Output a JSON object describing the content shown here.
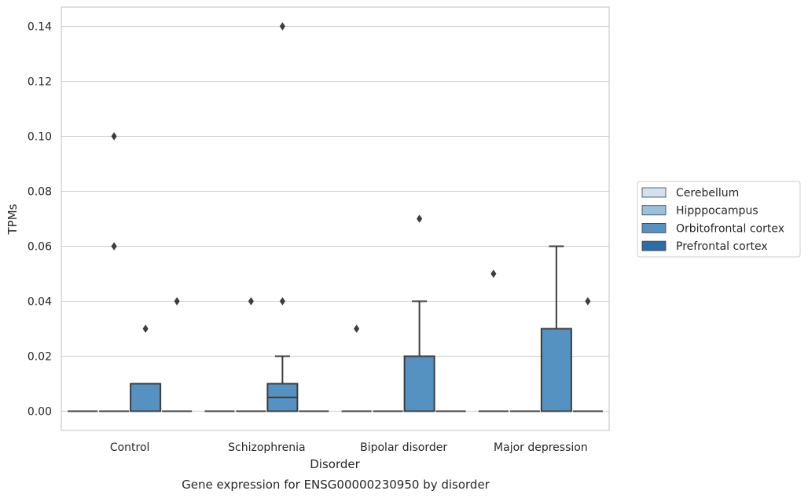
{
  "chart_data": {
    "type": "box",
    "caption": "Gene expression for ENSG00000230950 by disorder",
    "xlabel": "Disorder",
    "ylabel": "TPMs",
    "ylim": [
      -0.007,
      0.147
    ],
    "yticks": [
      0.0,
      0.02,
      0.04,
      0.06,
      0.08,
      0.1,
      0.12,
      0.14
    ],
    "ytick_labels": [
      "0.00",
      "0.02",
      "0.04",
      "0.06",
      "0.08",
      "0.10",
      "0.12",
      "0.14"
    ],
    "categories": [
      "Control",
      "Schizophrenia",
      "Bipolar disorder",
      "Major depression"
    ],
    "grid": "horizontal",
    "legend_position": "right",
    "series": [
      {
        "name": "Cerebellum",
        "color": "#d0e1f2",
        "boxes": [
          {
            "q1": 0.0,
            "median": 0.0,
            "q3": 0.0,
            "whisker_low": 0.0,
            "whisker_high": 0.0,
            "outliers": []
          },
          {
            "q1": 0.0,
            "median": 0.0,
            "q3": 0.0,
            "whisker_low": 0.0,
            "whisker_high": 0.0,
            "outliers": []
          },
          {
            "q1": 0.0,
            "median": 0.0,
            "q3": 0.0,
            "whisker_low": 0.0,
            "whisker_high": 0.0,
            "outliers": []
          },
          {
            "q1": 0.0,
            "median": 0.0,
            "q3": 0.0,
            "whisker_low": 0.0,
            "whisker_high": 0.0,
            "outliers": []
          }
        ]
      },
      {
        "name": "Hipppocampus",
        "color": "#9ac0dd",
        "boxes": [
          {
            "q1": 0.0,
            "median": 0.0,
            "q3": 0.0,
            "whisker_low": 0.0,
            "whisker_high": 0.0,
            "outliers": [
              0.1,
              0.06
            ]
          },
          {
            "q1": 0.0,
            "median": 0.0,
            "q3": 0.0,
            "whisker_low": 0.0,
            "whisker_high": 0.0,
            "outliers": []
          },
          {
            "q1": 0.0,
            "median": 0.0,
            "q3": 0.0,
            "whisker_low": 0.0,
            "whisker_high": 0.0,
            "outliers": []
          },
          {
            "q1": 0.0,
            "median": 0.0,
            "q3": 0.0,
            "whisker_low": 0.0,
            "whisker_high": 0.0,
            "outliers": []
          }
        ]
      },
      {
        "name": "Orbitofrontal cortex",
        "color": "#5692c1",
        "boxes": [
          {
            "q1": 0.0,
            "median": 0.0,
            "q3": 0.01,
            "whisker_low": 0.0,
            "whisker_high": 0.01,
            "outliers": [
              0.03
            ]
          },
          {
            "q1": 0.0,
            "median": 0.005,
            "q3": 0.01,
            "whisker_low": 0.0,
            "whisker_high": 0.02,
            "outliers": [
              0.14,
              0.04
            ]
          },
          {
            "q1": 0.0,
            "median": 0.0,
            "q3": 0.02,
            "whisker_low": 0.0,
            "whisker_high": 0.04,
            "outliers": [
              0.07
            ]
          },
          {
            "q1": 0.0,
            "median": 0.0,
            "q3": 0.03,
            "whisker_low": 0.0,
            "whisker_high": 0.06,
            "outliers": []
          }
        ]
      },
      {
        "name": "Prefrontal cortex",
        "color": "#2f6ba5",
        "boxes": [
          {
            "q1": 0.0,
            "median": 0.0,
            "q3": 0.0,
            "whisker_low": 0.0,
            "whisker_high": 0.0,
            "outliers": [
              0.04
            ]
          },
          {
            "q1": 0.0,
            "median": 0.0,
            "q3": 0.0,
            "whisker_low": 0.0,
            "whisker_high": 0.0,
            "outliers": []
          },
          {
            "q1": 0.0,
            "median": 0.0,
            "q3": 0.0,
            "whisker_low": 0.0,
            "whisker_high": 0.0,
            "outliers": []
          },
          {
            "q1": 0.0,
            "median": 0.0,
            "q3": 0.0,
            "whisker_low": 0.0,
            "whisker_high": 0.0,
            "outliers": [
              0.04
            ]
          }
        ]
      }
    ],
    "extra_outliers": [
      {
        "category": 1,
        "series": 1,
        "value": 0.04
      },
      {
        "category": 2,
        "series": 0,
        "value": 0.03
      },
      {
        "category": 3,
        "series": 0,
        "value": 0.05
      }
    ]
  }
}
